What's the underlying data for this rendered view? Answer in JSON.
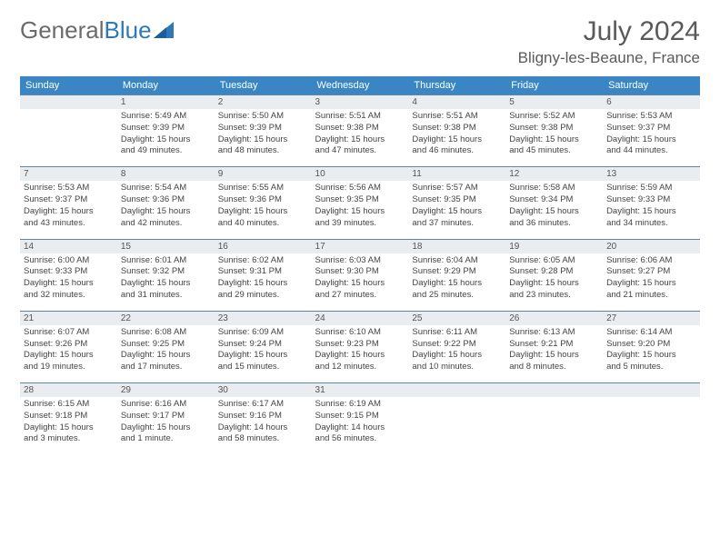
{
  "logo": {
    "part1": "General",
    "part2": "Blue"
  },
  "title": "July 2024",
  "location": "Bligny-les-Beaune, France",
  "colors": {
    "header_bg": "#3a86c5",
    "header_text": "#ffffff",
    "daynum_bg": "#e9edf0",
    "daynum_border": "#5d86a9",
    "text": "#444444",
    "title_text": "#5a5a5a",
    "logo_gray": "#6b6b6b",
    "logo_blue": "#2f78b7"
  },
  "day_headers": [
    "Sunday",
    "Monday",
    "Tuesday",
    "Wednesday",
    "Thursday",
    "Friday",
    "Saturday"
  ],
  "weeks": [
    {
      "nums": [
        "",
        "1",
        "2",
        "3",
        "4",
        "5",
        "6"
      ],
      "cells": [
        {
          "empty": true
        },
        {
          "sunrise": "Sunrise: 5:49 AM",
          "sunset": "Sunset: 9:39 PM",
          "day1": "Daylight: 15 hours",
          "day2": "and 49 minutes."
        },
        {
          "sunrise": "Sunrise: 5:50 AM",
          "sunset": "Sunset: 9:39 PM",
          "day1": "Daylight: 15 hours",
          "day2": "and 48 minutes."
        },
        {
          "sunrise": "Sunrise: 5:51 AM",
          "sunset": "Sunset: 9:38 PM",
          "day1": "Daylight: 15 hours",
          "day2": "and 47 minutes."
        },
        {
          "sunrise": "Sunrise: 5:51 AM",
          "sunset": "Sunset: 9:38 PM",
          "day1": "Daylight: 15 hours",
          "day2": "and 46 minutes."
        },
        {
          "sunrise": "Sunrise: 5:52 AM",
          "sunset": "Sunset: 9:38 PM",
          "day1": "Daylight: 15 hours",
          "day2": "and 45 minutes."
        },
        {
          "sunrise": "Sunrise: 5:53 AM",
          "sunset": "Sunset: 9:37 PM",
          "day1": "Daylight: 15 hours",
          "day2": "and 44 minutes."
        }
      ]
    },
    {
      "nums": [
        "7",
        "8",
        "9",
        "10",
        "11",
        "12",
        "13"
      ],
      "cells": [
        {
          "sunrise": "Sunrise: 5:53 AM",
          "sunset": "Sunset: 9:37 PM",
          "day1": "Daylight: 15 hours",
          "day2": "and 43 minutes."
        },
        {
          "sunrise": "Sunrise: 5:54 AM",
          "sunset": "Sunset: 9:36 PM",
          "day1": "Daylight: 15 hours",
          "day2": "and 42 minutes."
        },
        {
          "sunrise": "Sunrise: 5:55 AM",
          "sunset": "Sunset: 9:36 PM",
          "day1": "Daylight: 15 hours",
          "day2": "and 40 minutes."
        },
        {
          "sunrise": "Sunrise: 5:56 AM",
          "sunset": "Sunset: 9:35 PM",
          "day1": "Daylight: 15 hours",
          "day2": "and 39 minutes."
        },
        {
          "sunrise": "Sunrise: 5:57 AM",
          "sunset": "Sunset: 9:35 PM",
          "day1": "Daylight: 15 hours",
          "day2": "and 37 minutes."
        },
        {
          "sunrise": "Sunrise: 5:58 AM",
          "sunset": "Sunset: 9:34 PM",
          "day1": "Daylight: 15 hours",
          "day2": "and 36 minutes."
        },
        {
          "sunrise": "Sunrise: 5:59 AM",
          "sunset": "Sunset: 9:33 PM",
          "day1": "Daylight: 15 hours",
          "day2": "and 34 minutes."
        }
      ]
    },
    {
      "nums": [
        "14",
        "15",
        "16",
        "17",
        "18",
        "19",
        "20"
      ],
      "cells": [
        {
          "sunrise": "Sunrise: 6:00 AM",
          "sunset": "Sunset: 9:33 PM",
          "day1": "Daylight: 15 hours",
          "day2": "and 32 minutes."
        },
        {
          "sunrise": "Sunrise: 6:01 AM",
          "sunset": "Sunset: 9:32 PM",
          "day1": "Daylight: 15 hours",
          "day2": "and 31 minutes."
        },
        {
          "sunrise": "Sunrise: 6:02 AM",
          "sunset": "Sunset: 9:31 PM",
          "day1": "Daylight: 15 hours",
          "day2": "and 29 minutes."
        },
        {
          "sunrise": "Sunrise: 6:03 AM",
          "sunset": "Sunset: 9:30 PM",
          "day1": "Daylight: 15 hours",
          "day2": "and 27 minutes."
        },
        {
          "sunrise": "Sunrise: 6:04 AM",
          "sunset": "Sunset: 9:29 PM",
          "day1": "Daylight: 15 hours",
          "day2": "and 25 minutes."
        },
        {
          "sunrise": "Sunrise: 6:05 AM",
          "sunset": "Sunset: 9:28 PM",
          "day1": "Daylight: 15 hours",
          "day2": "and 23 minutes."
        },
        {
          "sunrise": "Sunrise: 6:06 AM",
          "sunset": "Sunset: 9:27 PM",
          "day1": "Daylight: 15 hours",
          "day2": "and 21 minutes."
        }
      ]
    },
    {
      "nums": [
        "21",
        "22",
        "23",
        "24",
        "25",
        "26",
        "27"
      ],
      "cells": [
        {
          "sunrise": "Sunrise: 6:07 AM",
          "sunset": "Sunset: 9:26 PM",
          "day1": "Daylight: 15 hours",
          "day2": "and 19 minutes."
        },
        {
          "sunrise": "Sunrise: 6:08 AM",
          "sunset": "Sunset: 9:25 PM",
          "day1": "Daylight: 15 hours",
          "day2": "and 17 minutes."
        },
        {
          "sunrise": "Sunrise: 6:09 AM",
          "sunset": "Sunset: 9:24 PM",
          "day1": "Daylight: 15 hours",
          "day2": "and 15 minutes."
        },
        {
          "sunrise": "Sunrise: 6:10 AM",
          "sunset": "Sunset: 9:23 PM",
          "day1": "Daylight: 15 hours",
          "day2": "and 12 minutes."
        },
        {
          "sunrise": "Sunrise: 6:11 AM",
          "sunset": "Sunset: 9:22 PM",
          "day1": "Daylight: 15 hours",
          "day2": "and 10 minutes."
        },
        {
          "sunrise": "Sunrise: 6:13 AM",
          "sunset": "Sunset: 9:21 PM",
          "day1": "Daylight: 15 hours",
          "day2": "and 8 minutes."
        },
        {
          "sunrise": "Sunrise: 6:14 AM",
          "sunset": "Sunset: 9:20 PM",
          "day1": "Daylight: 15 hours",
          "day2": "and 5 minutes."
        }
      ]
    },
    {
      "nums": [
        "28",
        "29",
        "30",
        "31",
        "",
        "",
        ""
      ],
      "cells": [
        {
          "sunrise": "Sunrise: 6:15 AM",
          "sunset": "Sunset: 9:18 PM",
          "day1": "Daylight: 15 hours",
          "day2": "and 3 minutes."
        },
        {
          "sunrise": "Sunrise: 6:16 AM",
          "sunset": "Sunset: 9:17 PM",
          "day1": "Daylight: 15 hours",
          "day2": "and 1 minute."
        },
        {
          "sunrise": "Sunrise: 6:17 AM",
          "sunset": "Sunset: 9:16 PM",
          "day1": "Daylight: 14 hours",
          "day2": "and 58 minutes."
        },
        {
          "sunrise": "Sunrise: 6:19 AM",
          "sunset": "Sunset: 9:15 PM",
          "day1": "Daylight: 14 hours",
          "day2": "and 56 minutes."
        },
        {
          "empty": true
        },
        {
          "empty": true
        },
        {
          "empty": true
        }
      ]
    }
  ]
}
